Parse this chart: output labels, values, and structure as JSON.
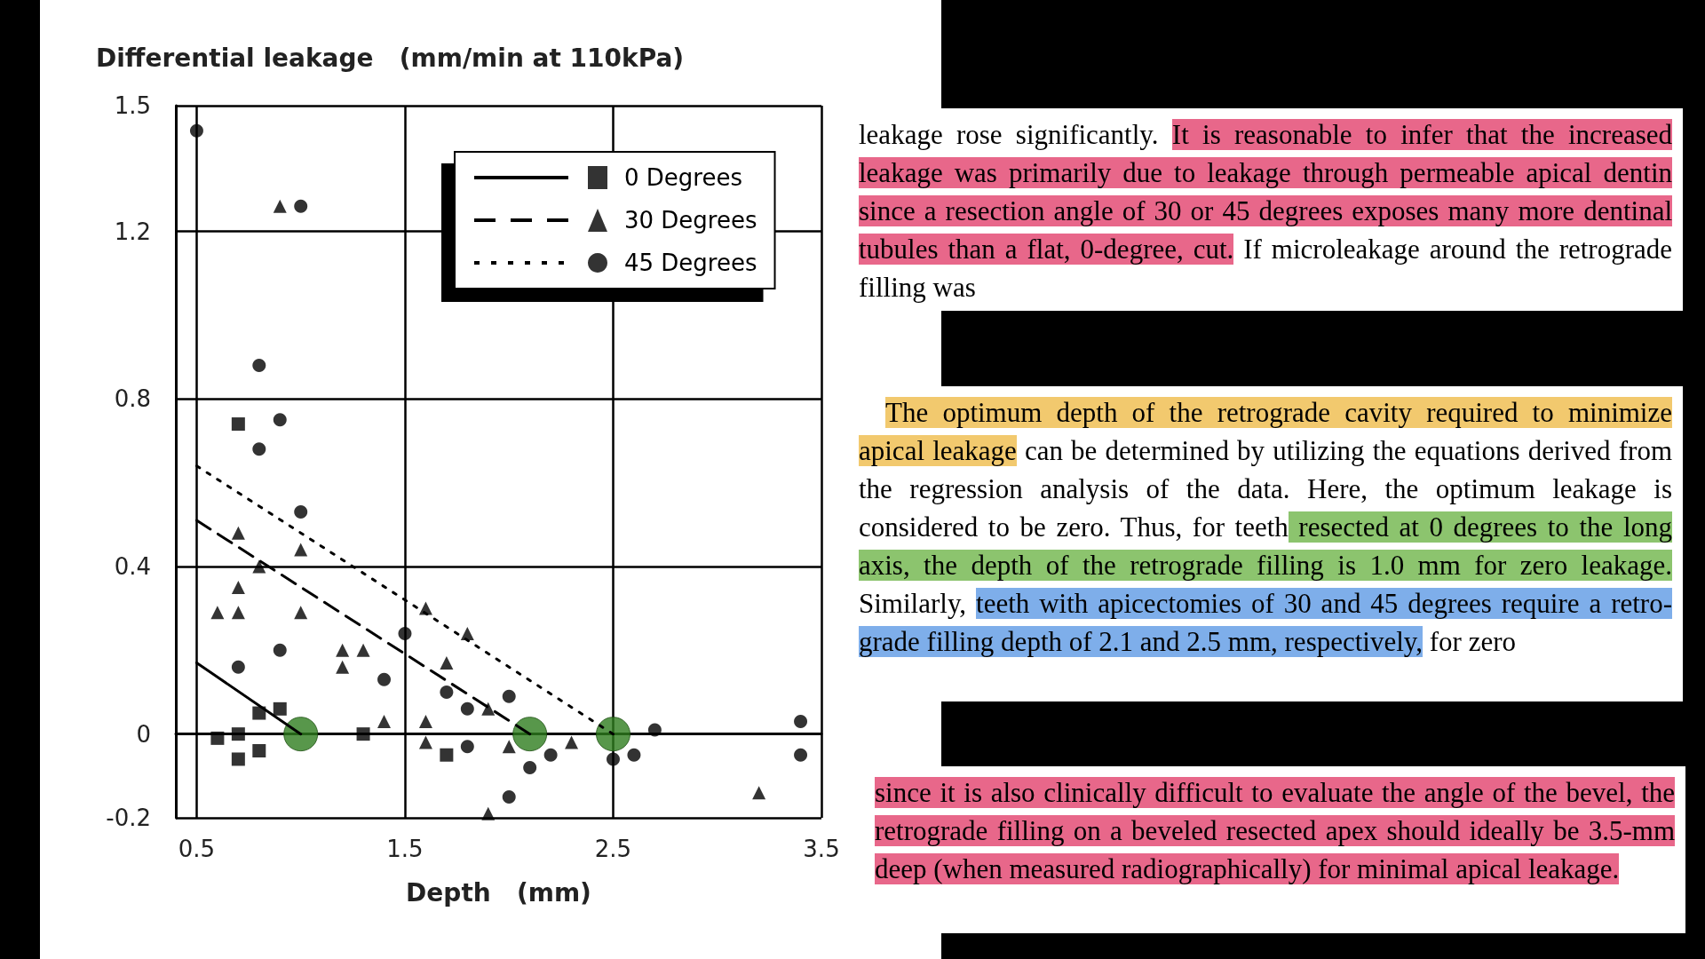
{
  "chart_data": {
    "type": "scatter",
    "ylabel": "Differential leakage   (mm/min at 110kPa)",
    "xlabel": "Depth   (mm)",
    "xlim": [
      0.4,
      3.5
    ],
    "xticks": [
      0.5,
      1.5,
      2.5,
      3.5
    ],
    "ylim": [
      -0.2,
      1.5
    ],
    "yticks": [
      -0.2,
      0,
      0.4,
      0.8,
      1.2,
      1.5
    ],
    "grid": true,
    "legend": "top right",
    "series": [
      {
        "name": "0 Degrees",
        "marker": "square",
        "color": "#000000",
        "x": [
          0.6,
          0.7,
          0.7,
          0.8,
          0.8,
          0.9,
          1.3,
          1.7,
          0.7
        ],
        "values": [
          -0.01,
          0,
          -0.06,
          -0.04,
          0.05,
          0.06,
          0,
          -0.05,
          0.74
        ]
      },
      {
        "name": "30 Degrees",
        "marker": "triangle",
        "color": "#000000",
        "x": [
          0.9,
          0.7,
          1.0,
          0.8,
          0.7,
          0.6,
          0.7,
          1.0,
          1.2,
          1.2,
          1.3,
          1.4,
          1.6,
          1.6,
          1.6,
          1.8,
          1.7,
          1.9,
          2.0,
          2.3,
          1.9,
          3.2
        ],
        "values": [
          1.26,
          0.48,
          0.44,
          0.4,
          0.35,
          0.29,
          0.29,
          0.29,
          0.2,
          0.16,
          0.2,
          0.03,
          0.3,
          0.03,
          -0.02,
          0.24,
          0.17,
          0.06,
          -0.03,
          -0.02,
          -0.19,
          -0.14
        ]
      },
      {
        "name": "45 Degrees",
        "marker": "circle",
        "color": "#000000",
        "x": [
          0.5,
          1.0,
          0.8,
          0.9,
          0.8,
          1.0,
          0.7,
          0.9,
          1.4,
          1.5,
          1.7,
          1.8,
          2.0,
          1.8,
          2.1,
          2.2,
          2.5,
          2.6,
          2.7,
          3.4,
          3.4,
          2.0
        ],
        "values": [
          1.44,
          1.26,
          0.88,
          0.75,
          0.68,
          0.53,
          0.16,
          0.2,
          0.13,
          0.24,
          0.1,
          0.06,
          0.09,
          -0.03,
          -0.08,
          -0.05,
          -0.06,
          -0.05,
          0.01,
          0.03,
          -0.05,
          -0.15
        ]
      },
      {
        "type": "line",
        "line_style": "solid",
        "color": "#000000",
        "x": [
          0.5,
          1.0
        ],
        "values": [
          0.17,
          0
        ]
      },
      {
        "type": "line",
        "line_style": "dashed",
        "color": "#000000",
        "x": [
          0.5,
          2.1
        ],
        "values": [
          0.51,
          0
        ]
      },
      {
        "type": "line",
        "line_style": "dotted",
        "color": "#000000",
        "x": [
          0.5,
          2.5
        ],
        "values": [
          0.64,
          0
        ]
      },
      {
        "marker": "circle",
        "color": "#2e7d1e",
        "x": [
          1.0,
          2.1,
          2.5
        ],
        "values": [
          0,
          0,
          0
        ]
      }
    ],
    "annotations": [
      "leakage rose significantly. ",
      "It is reasonable to infer that the increased leakage was primarily due to leakage through permeable apical dentin since a resection angle of 30 or 45 degrees exposes many more dentinal tubules than a flat, 0-degree, cut.",
      " If microleakage around the retrograde filling was",
      "The optimum depth of the retrograde cavity required to minimize apical leakage",
      " can be determined by utilizing the equations derived from the regression analysis of the data. Here, the optimum leakage is considered to be zero. Thus, for teeth",
      " resected at 0 degrees to the long axis, the depth of the retrograde filling is 1.0 mm for zero leakage.",
      " Similarly, ",
      "teeth with apicectomies of 30 and 45 degrees require a retro-grade filling depth of 2.1 and 2.5 mm, respectively,",
      " for zero",
      "since it is also clinically difficult to evaluate the angle of the bevel, the retrograde filling on a beveled resected apex should ideally be 3.5-mm deep (when measured radiographically) for minimal apical leakage."
    ]
  }
}
